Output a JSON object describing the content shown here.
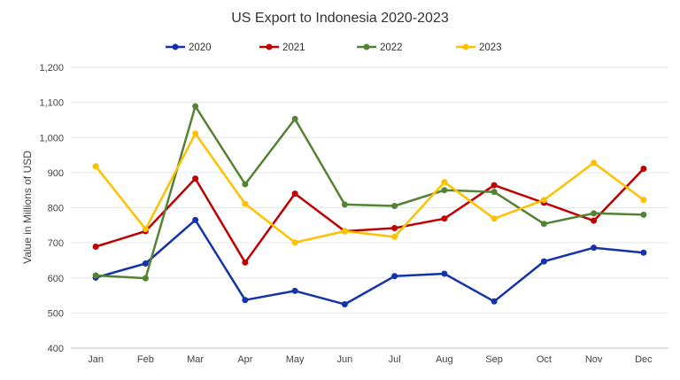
{
  "chart_data": {
    "type": "line",
    "title": "US Export to Indonesia 2020-2023",
    "xlabel": "",
    "ylabel": "Value in Millions of USD",
    "categories": [
      "Jan",
      "Feb",
      "Mar",
      "Apr",
      "May",
      "Jun",
      "Jul",
      "Aug",
      "Sep",
      "Oct",
      "Nov",
      "Dec"
    ],
    "ylim": [
      400,
      1200
    ],
    "yticks": [
      400,
      500,
      600,
      700,
      800,
      900,
      1000,
      1100,
      1200
    ],
    "ytick_labels": [
      "400",
      "500",
      "600",
      "700",
      "800",
      "900",
      "1,000",
      "1,100",
      "1,200"
    ],
    "grid": true,
    "legend_position": "top-center",
    "series": [
      {
        "name": "2020",
        "color": "#1433a8",
        "values": [
          601,
          641,
          765,
          537,
          563,
          525,
          605,
          612,
          533,
          647,
          686,
          672
        ]
      },
      {
        "name": "2021",
        "color": "#c00000",
        "values": [
          689,
          733,
          883,
          644,
          840,
          733,
          742,
          769,
          864,
          814,
          763,
          911
        ]
      },
      {
        "name": "2022",
        "color": "#548235",
        "values": [
          607,
          599,
          1089,
          867,
          1053,
          809,
          805,
          850,
          845,
          754,
          784,
          780
        ]
      },
      {
        "name": "2023",
        "color": "#ffc000",
        "values": [
          918,
          739,
          1011,
          811,
          701,
          733,
          717,
          873,
          769,
          822,
          928,
          822
        ]
      }
    ]
  }
}
